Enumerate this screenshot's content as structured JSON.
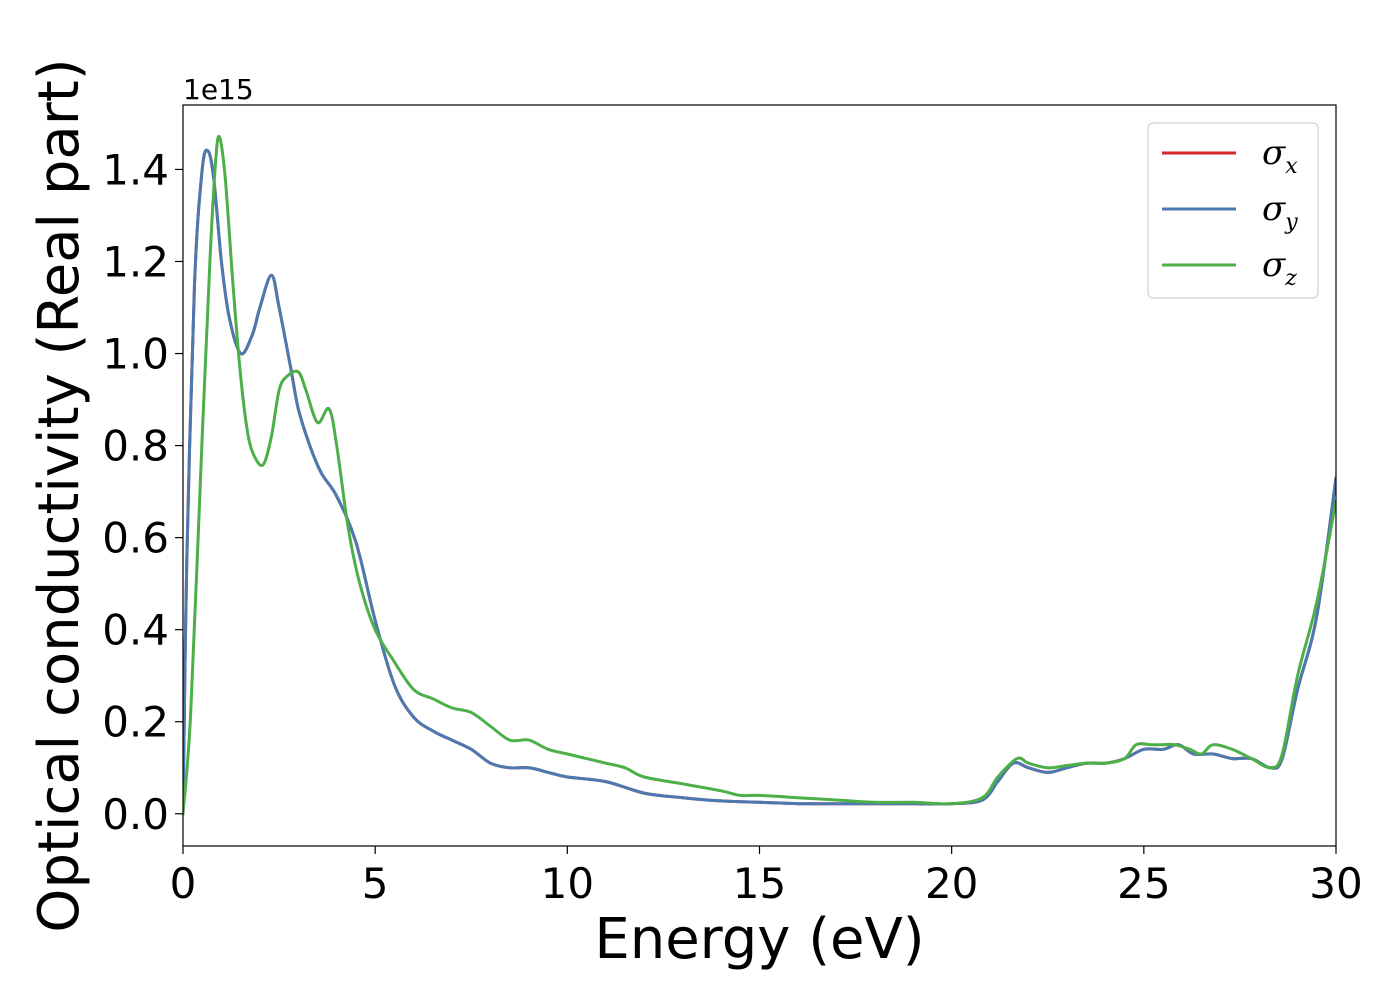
{
  "chart_data": {
    "type": "line",
    "title": "",
    "xlabel": "Energy (eV)",
    "ylabel": "Optical conductivity (Real part)",
    "y_offset_text": "1e15",
    "xlim": [
      0,
      30
    ],
    "ylim": [
      -0.07,
      1.54
    ],
    "x_ticks": [
      0,
      5,
      10,
      15,
      20,
      25,
      30
    ],
    "x_tick_labels": [
      "0",
      "5",
      "10",
      "15",
      "20",
      "25",
      "30"
    ],
    "y_ticks": [
      0.0,
      0.2,
      0.4,
      0.6,
      0.8,
      1.0,
      1.2,
      1.4
    ],
    "y_tick_labels": [
      "0.0",
      "0.2",
      "0.4",
      "0.6",
      "0.8",
      "1.0",
      "1.2",
      "1.4"
    ],
    "grid": false,
    "legend_position": "top-right",
    "series": [
      {
        "name": "σx",
        "symbol": "σ",
        "subscript": "x",
        "color": "#d62728",
        "x": [
          0,
          0.1,
          0.3,
          0.5,
          0.65,
          0.8,
          1.0,
          1.2,
          1.5,
          1.8,
          2.0,
          2.3,
          2.5,
          2.8,
          3.0,
          3.3,
          3.6,
          4.0,
          4.5,
          5.0,
          5.5,
          6.0,
          6.5,
          7.0,
          7.5,
          8.0,
          8.5,
          9.0,
          9.5,
          10.0,
          11.0,
          12.0,
          13.0,
          14.0,
          15.0,
          16.0,
          17.0,
          18.0,
          19.0,
          20.0,
          20.8,
          21.2,
          21.6,
          22.0,
          22.5,
          23.0,
          23.5,
          24.0,
          24.5,
          25.0,
          25.5,
          25.9,
          26.3,
          26.8,
          27.3,
          27.8,
          28.3,
          28.6,
          29.0,
          29.5,
          30.0
        ],
        "y": [
          0.0,
          0.55,
          1.15,
          1.4,
          1.44,
          1.38,
          1.2,
          1.08,
          1.0,
          1.04,
          1.1,
          1.17,
          1.1,
          0.97,
          0.88,
          0.8,
          0.74,
          0.69,
          0.59,
          0.42,
          0.28,
          0.21,
          0.18,
          0.16,
          0.14,
          0.11,
          0.1,
          0.1,
          0.09,
          0.08,
          0.07,
          0.045,
          0.035,
          0.028,
          0.025,
          0.022,
          0.022,
          0.022,
          0.022,
          0.022,
          0.03,
          0.07,
          0.11,
          0.1,
          0.09,
          0.1,
          0.11,
          0.11,
          0.12,
          0.14,
          0.14,
          0.15,
          0.13,
          0.13,
          0.12,
          0.12,
          0.1,
          0.12,
          0.27,
          0.43,
          0.73
        ]
      },
      {
        "name": "σy",
        "symbol": "σ",
        "subscript": "y",
        "color": "#4a7ab0",
        "x": [
          0,
          0.1,
          0.3,
          0.5,
          0.65,
          0.8,
          1.0,
          1.2,
          1.5,
          1.8,
          2.0,
          2.3,
          2.5,
          2.8,
          3.0,
          3.3,
          3.6,
          4.0,
          4.5,
          5.0,
          5.5,
          6.0,
          6.5,
          7.0,
          7.5,
          8.0,
          8.5,
          9.0,
          9.5,
          10.0,
          11.0,
          12.0,
          13.0,
          14.0,
          15.0,
          16.0,
          17.0,
          18.0,
          19.0,
          20.0,
          20.8,
          21.2,
          21.6,
          22.0,
          22.5,
          23.0,
          23.5,
          24.0,
          24.5,
          25.0,
          25.5,
          25.9,
          26.3,
          26.8,
          27.3,
          27.8,
          28.3,
          28.6,
          29.0,
          29.5,
          30.0
        ],
        "y": [
          0.0,
          0.55,
          1.15,
          1.4,
          1.44,
          1.38,
          1.2,
          1.08,
          1.0,
          1.04,
          1.1,
          1.17,
          1.1,
          0.97,
          0.88,
          0.8,
          0.74,
          0.69,
          0.59,
          0.42,
          0.28,
          0.21,
          0.18,
          0.16,
          0.14,
          0.11,
          0.1,
          0.1,
          0.09,
          0.08,
          0.07,
          0.045,
          0.035,
          0.028,
          0.025,
          0.022,
          0.022,
          0.022,
          0.022,
          0.022,
          0.03,
          0.07,
          0.11,
          0.1,
          0.09,
          0.1,
          0.11,
          0.11,
          0.12,
          0.14,
          0.14,
          0.15,
          0.13,
          0.13,
          0.12,
          0.12,
          0.1,
          0.12,
          0.27,
          0.43,
          0.73
        ]
      },
      {
        "name": "σz",
        "symbol": "σ",
        "subscript": "z",
        "color": "#4daf4a",
        "x": [
          0,
          0.2,
          0.5,
          0.7,
          0.85,
          0.95,
          1.1,
          1.3,
          1.5,
          1.7,
          1.9,
          2.1,
          2.3,
          2.5,
          2.7,
          3.0,
          3.2,
          3.5,
          3.8,
          4.0,
          4.3,
          4.6,
          5.0,
          5.5,
          6.0,
          6.5,
          7.0,
          7.5,
          8.0,
          8.5,
          9.0,
          9.5,
          10.0,
          10.5,
          11.0,
          11.5,
          12.0,
          13.0,
          14.0,
          14.5,
          15.0,
          16.0,
          17.0,
          18.0,
          19.0,
          20.0,
          20.8,
          21.2,
          21.7,
          22.0,
          22.5,
          23.0,
          23.5,
          24.0,
          24.5,
          24.8,
          25.2,
          25.5,
          25.8,
          26.2,
          26.5,
          26.8,
          27.3,
          27.8,
          28.3,
          28.6,
          29.0,
          29.5,
          30.0
        ],
        "y": [
          0.0,
          0.22,
          0.82,
          1.2,
          1.42,
          1.47,
          1.38,
          1.15,
          0.95,
          0.82,
          0.77,
          0.76,
          0.82,
          0.92,
          0.95,
          0.96,
          0.92,
          0.85,
          0.88,
          0.8,
          0.62,
          0.5,
          0.4,
          0.33,
          0.27,
          0.25,
          0.23,
          0.22,
          0.19,
          0.16,
          0.16,
          0.14,
          0.13,
          0.12,
          0.11,
          0.1,
          0.08,
          0.065,
          0.05,
          0.04,
          0.04,
          0.035,
          0.03,
          0.025,
          0.025,
          0.022,
          0.035,
          0.08,
          0.12,
          0.11,
          0.1,
          0.105,
          0.11,
          0.11,
          0.12,
          0.15,
          0.15,
          0.15,
          0.15,
          0.14,
          0.13,
          0.15,
          0.14,
          0.12,
          0.1,
          0.13,
          0.3,
          0.46,
          0.68
        ]
      }
    ]
  }
}
